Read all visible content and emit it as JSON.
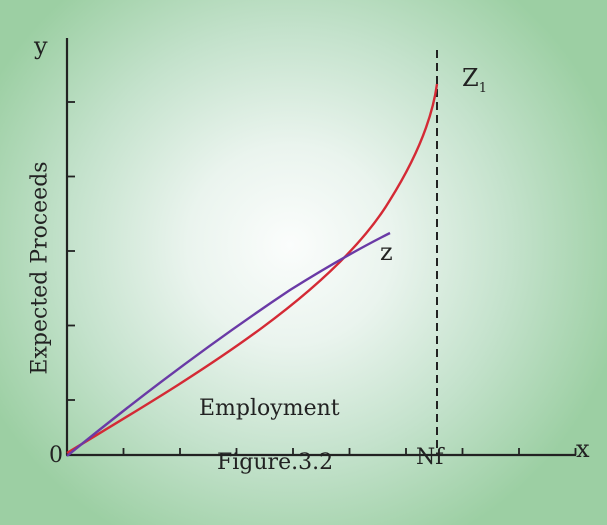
{
  "labels": {
    "y_axis": "y",
    "x_axis": "x",
    "origin": "0",
    "y_title": "Expected Proceeds",
    "x_title": "Employment",
    "full_employment": "Nf",
    "caption": "Figure.3.2",
    "curve_z": "z",
    "curve_z1_base": "Z",
    "curve_z1_sub": "1"
  },
  "colors": {
    "curve_z1": "#d42a35",
    "curve_z": "#6a3aa6",
    "axis": "#222222",
    "vertical_line": "#222222"
  },
  "chart_data": {
    "type": "line",
    "x_axis_title": "Employment",
    "y_axis_title": "Expected Proceeds",
    "x_marker": {
      "label": "Nf",
      "style": "dashed vertical line"
    },
    "series": [
      {
        "name": "Z1",
        "shape": "rises, steepening sharply as it approaches Nf",
        "color": "#d42a35"
      },
      {
        "name": "z",
        "shape": "rises and flattens (concave), ending before Nf",
        "color": "#6a3aa6"
      }
    ],
    "ticks": {
      "x_count": 10,
      "y_count": 5
    }
  }
}
